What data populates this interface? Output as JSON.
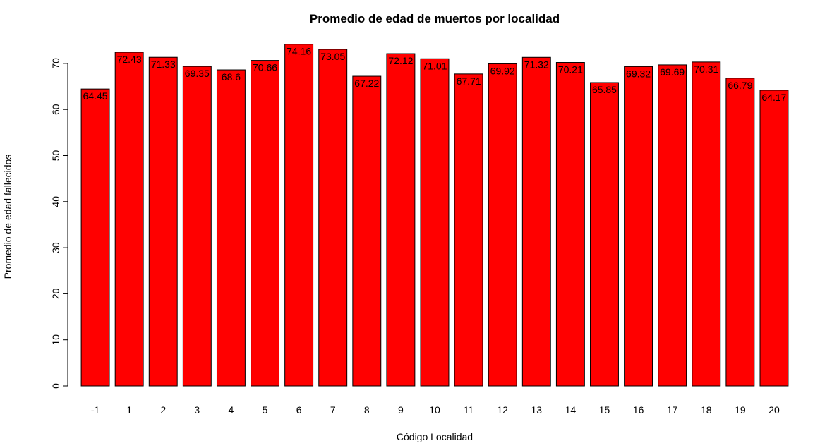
{
  "chart_data": {
    "type": "bar",
    "title": "Promedio de edad de muertos por localidad",
    "xlabel": "Código Localidad",
    "ylabel": "Promedio de edad fallecidos",
    "categories": [
      "-1",
      "1",
      "2",
      "3",
      "4",
      "5",
      "6",
      "7",
      "8",
      "9",
      "10",
      "11",
      "12",
      "13",
      "14",
      "15",
      "16",
      "17",
      "18",
      "19",
      "20"
    ],
    "values": [
      64.45,
      72.43,
      71.33,
      69.35,
      68.6,
      70.66,
      74.16,
      73.05,
      67.22,
      72.12,
      71.01,
      67.71,
      69.92,
      71.32,
      70.21,
      65.85,
      69.32,
      69.69,
      70.31,
      66.79,
      64.17
    ],
    "data_labels": [
      "64.45",
      "72.43",
      "71.33",
      "69.35",
      "68.6",
      "70.66",
      "74.16",
      "73.05",
      "67.22",
      "72.12",
      "71.01",
      "67.71",
      "69.92",
      "71.32",
      "70.21",
      "65.85",
      "69.32",
      "69.69",
      "70.31",
      "66.79",
      "64.17"
    ],
    "yticks": [
      "0",
      "10",
      "20",
      "30",
      "40",
      "50",
      "60",
      "70"
    ],
    "ylim": [
      0,
      74.16
    ],
    "bar_color": "#ff0000",
    "bar_border": "#000000",
    "grid": false
  }
}
